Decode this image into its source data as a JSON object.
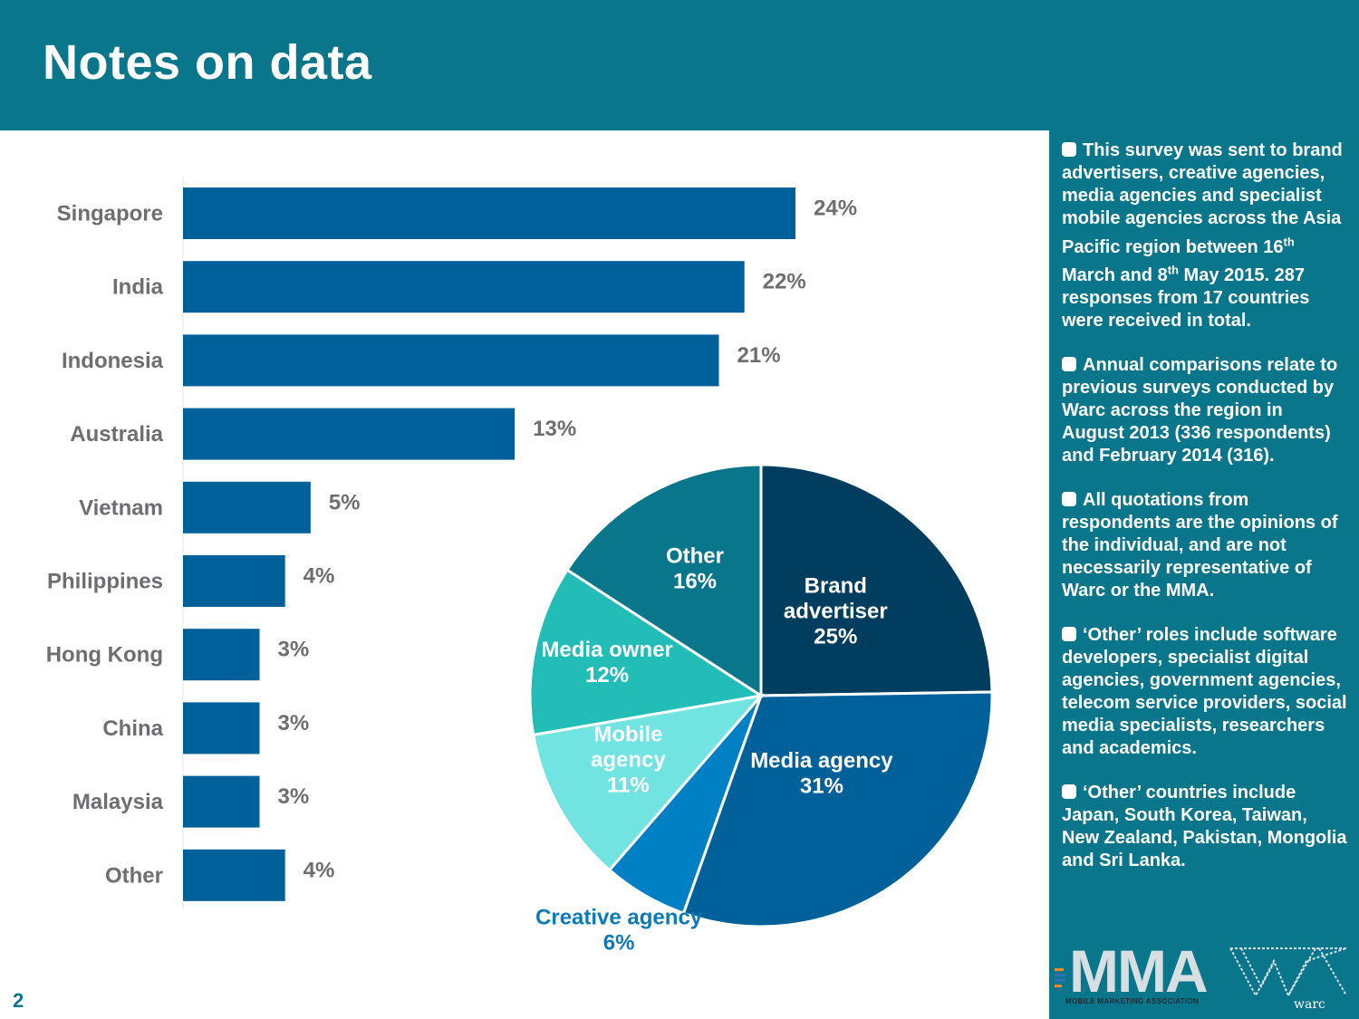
{
  "header": {
    "title": "Notes on data"
  },
  "page_number": "2",
  "notes": [
    "This survey was sent to brand advertisers, creative agencies, media agencies and specialist mobile agencies across the Asia Pacific region between 16th March and 8th May 2015. 287 responses from 17 countries were received in total.",
    "Annual comparisons relate to previous surveys conducted by Warc across the region in August 2013 (336 respondents) and February 2014 (316).",
    "All quotations from respondents are the opinions of the individual, and are not necessarily representative of Warc or the MMA.",
    "‘Other’ roles include software developers, specialist digital agencies, government agencies, telecom service providers, social media specialists, researchers and academics.",
    "‘Other’ countries include Japan, South Korea, Taiwan, New Zealand, Pakistan, Mongolia and Sri Lanka."
  ],
  "logos": {
    "mma": "MMA",
    "mma_subtitle": "MOBILE MARKETING ASSOCIATION",
    "warc": "warc"
  },
  "colors": {
    "header": "#0a768b",
    "bar": "#00609a",
    "label": "#6d6e71"
  },
  "chart_data": [
    {
      "type": "bar",
      "orientation": "horizontal",
      "categories": [
        "Singapore",
        "India",
        "Indonesia",
        "Australia",
        "Vietnam",
        "Philippines",
        "Hong Kong",
        "China",
        "Malaysia",
        "Other"
      ],
      "values": [
        24,
        22,
        21,
        13,
        5,
        4,
        3,
        3,
        3,
        4
      ],
      "value_labels": [
        "24%",
        "22%",
        "21%",
        "13%",
        "5%",
        "4%",
        "3%",
        "3%",
        "3%",
        "4%"
      ],
      "unit": "%",
      "xlim": [
        0,
        24
      ],
      "color": "#00609a"
    },
    {
      "type": "pie",
      "slices": [
        {
          "name": "Brand advertiser",
          "lines": [
            "Brand",
            "advertiser"
          ],
          "value": 25,
          "label": "25%",
          "color": "#003d5f",
          "label_color": "#ffffff"
        },
        {
          "name": "Media agency",
          "lines": [
            "Media agency"
          ],
          "value": 31,
          "label": "31%",
          "color": "#00609a",
          "label_color": "#ffffff"
        },
        {
          "name": "Creative agency",
          "lines": [
            "Creative agency"
          ],
          "value": 6,
          "label": "6%",
          "color": "#0080c4",
          "label_color": "#0a7ab8"
        },
        {
          "name": "Mobile agency",
          "lines": [
            "Mobile",
            "agency"
          ],
          "value": 11,
          "label": "11%",
          "color": "#71e4e2",
          "label_color": "#ffffff"
        },
        {
          "name": "Media owner",
          "lines": [
            "Media owner"
          ],
          "value": 12,
          "label": "12%",
          "color": "#21bdb6",
          "label_color": "#ffffff"
        },
        {
          "name": "Other",
          "lines": [
            "Other"
          ],
          "value": 16,
          "label": "16%",
          "color": "#0a768b",
          "label_color": "#ffffff"
        }
      ]
    }
  ]
}
